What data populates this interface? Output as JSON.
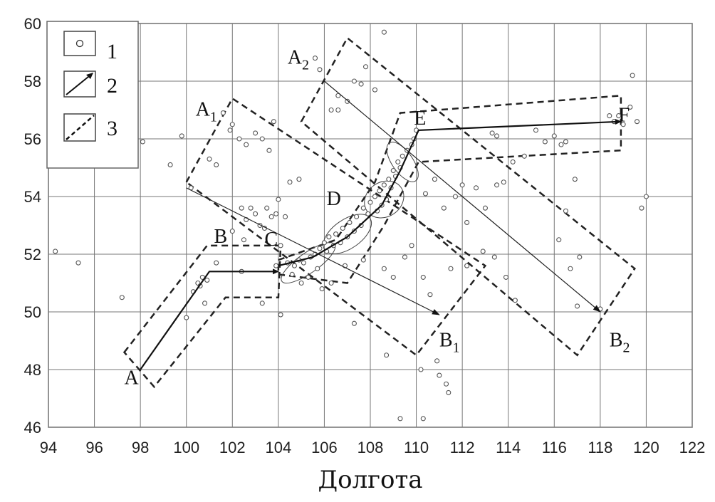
{
  "chart_data": {
    "type": "scatter",
    "xlabel": "Долгота",
    "xlim": [
      94,
      122
    ],
    "ylim": [
      46,
      60
    ],
    "x_ticks": [
      "94",
      "96",
      "98",
      "100",
      "102",
      "104",
      "106",
      "108",
      "110",
      "112",
      "114",
      "116",
      "118",
      "120",
      "122"
    ],
    "y_ticks": [
      "46",
      "48",
      "50",
      "52",
      "54",
      "56",
      "58",
      "60"
    ],
    "legend": [
      "1",
      "2",
      "3"
    ],
    "point_labels": {
      "A": "A",
      "B": "B",
      "C": "C",
      "D": "D",
      "E": "E",
      "F": "F",
      "A1": "A",
      "A1_sub": "1",
      "A2": "A",
      "A2_sub": "2",
      "B1": "B",
      "B1_sub": "1",
      "B2": "B",
      "B2_sub": "2"
    },
    "grid": true,
    "legend_position": "top-left",
    "points": [
      [
        94.3,
        52.1
      ],
      [
        95.3,
        51.7
      ],
      [
        98.1,
        55.9
      ],
      [
        99.3,
        55.1
      ],
      [
        99.8,
        56.1
      ],
      [
        100.2,
        54.3
      ],
      [
        100.5,
        51.0
      ],
      [
        100.7,
        51.2
      ],
      [
        100.6,
        50.9
      ],
      [
        100.9,
        51.1
      ],
      [
        100.3,
        50.7
      ],
      [
        100.0,
        49.8
      ],
      [
        101.0,
        55.3
      ],
      [
        101.3,
        55.1
      ],
      [
        101.6,
        56.9
      ],
      [
        101.9,
        56.3
      ],
      [
        102.0,
        56.5
      ],
      [
        102.3,
        56.0
      ],
      [
        102.6,
        55.8
      ],
      [
        103.0,
        56.2
      ],
      [
        103.3,
        56.0
      ],
      [
        103.6,
        55.6
      ],
      [
        103.8,
        56.6
      ],
      [
        102.4,
        53.6
      ],
      [
        102.6,
        53.2
      ],
      [
        102.8,
        53.6
      ],
      [
        103.0,
        53.4
      ],
      [
        103.2,
        53.0
      ],
      [
        103.5,
        53.6
      ],
      [
        103.7,
        53.3
      ],
      [
        103.9,
        53.4
      ],
      [
        102.0,
        52.8
      ],
      [
        102.5,
        52.5
      ],
      [
        103.4,
        52.9
      ],
      [
        104.3,
        53.3
      ],
      [
        104.5,
        54.5
      ],
      [
        104.9,
        54.6
      ],
      [
        104.0,
        53.9
      ],
      [
        103.9,
        51.6
      ],
      [
        104.1,
        52.3
      ],
      [
        104.4,
        51.7
      ],
      [
        104.7,
        51.6
      ],
      [
        104.9,
        51.8
      ],
      [
        105.1,
        51.7
      ],
      [
        105.4,
        51.9
      ],
      [
        105.6,
        52.0
      ],
      [
        105.8,
        52.2
      ],
      [
        106.0,
        52.4
      ],
      [
        106.2,
        52.6
      ],
      [
        106.5,
        52.7
      ],
      [
        106.8,
        52.9
      ],
      [
        107.1,
        53.1
      ],
      [
        107.4,
        53.3
      ],
      [
        107.7,
        53.6
      ],
      [
        108.0,
        53.8
      ],
      [
        108.2,
        54.0
      ],
      [
        108.4,
        54.2
      ],
      [
        108.6,
        54.4
      ],
      [
        108.8,
        54.6
      ],
      [
        109.0,
        54.9
      ],
      [
        109.2,
        55.2
      ],
      [
        109.4,
        55.4
      ],
      [
        109.6,
        55.6
      ],
      [
        109.8,
        55.8
      ],
      [
        109.9,
        56.0
      ],
      [
        110.0,
        56.3
      ],
      [
        108.5,
        53.7
      ],
      [
        108.7,
        53.9
      ],
      [
        108.9,
        54.3
      ],
      [
        109.1,
        54.7
      ],
      [
        109.3,
        55.0
      ],
      [
        108.3,
        53.5
      ],
      [
        107.9,
        53.4
      ],
      [
        107.6,
        53.0
      ],
      [
        107.3,
        52.8
      ],
      [
        107.0,
        52.6
      ],
      [
        106.7,
        52.4
      ],
      [
        106.4,
        52.3
      ],
      [
        106.1,
        52.1
      ],
      [
        105.7,
        51.5
      ],
      [
        105.3,
        51.2
      ],
      [
        105.0,
        51.0
      ],
      [
        104.6,
        51.3
      ],
      [
        105.9,
        50.8
      ],
      [
        106.3,
        51.0
      ],
      [
        106.9,
        51.6
      ],
      [
        107.7,
        51.8
      ],
      [
        108.6,
        51.5
      ],
      [
        109.0,
        51.2
      ],
      [
        109.5,
        51.9
      ],
      [
        109.8,
        52.3
      ],
      [
        107.6,
        57.9
      ],
      [
        107.8,
        58.5
      ],
      [
        107.3,
        58.0
      ],
      [
        107.0,
        57.3
      ],
      [
        106.6,
        57.5
      ],
      [
        105.6,
        58.8
      ],
      [
        105.8,
        58.4
      ],
      [
        106.3,
        57.0
      ],
      [
        106.6,
        57.0
      ],
      [
        108.2,
        57.7
      ],
      [
        108.6,
        59.7
      ],
      [
        110.4,
        54.1
      ],
      [
        110.8,
        54.6
      ],
      [
        111.2,
        53.6
      ],
      [
        111.7,
        54.0
      ],
      [
        112.2,
        53.1
      ],
      [
        112.0,
        54.4
      ],
      [
        112.6,
        54.3
      ],
      [
        113.0,
        53.6
      ],
      [
        113.5,
        54.4
      ],
      [
        113.8,
        54.5
      ],
      [
        114.2,
        55.2
      ],
      [
        114.7,
        55.4
      ],
      [
        115.2,
        56.3
      ],
      [
        115.6,
        55.9
      ],
      [
        116.0,
        56.1
      ],
      [
        116.3,
        55.8
      ],
      [
        116.5,
        55.9
      ],
      [
        113.3,
        56.2
      ],
      [
        113.5,
        56.1
      ],
      [
        112.9,
        52.1
      ],
      [
        113.4,
        51.9
      ],
      [
        113.9,
        51.2
      ],
      [
        114.3,
        50.4
      ],
      [
        116.2,
        52.5
      ],
      [
        116.7,
        51.5
      ],
      [
        117.1,
        51.9
      ],
      [
        116.9,
        54.6
      ],
      [
        116.5,
        53.5
      ],
      [
        118.4,
        56.8
      ],
      [
        118.6,
        56.6
      ],
      [
        118.8,
        56.8
      ],
      [
        119.0,
        56.5
      ],
      [
        119.3,
        57.1
      ],
      [
        119.4,
        58.2
      ],
      [
        119.6,
        56.6
      ],
      [
        119.8,
        53.6
      ],
      [
        120.0,
        54.0
      ],
      [
        117.0,
        50.2
      ],
      [
        118.0,
        50.1
      ],
      [
        110.2,
        48.0
      ],
      [
        110.6,
        50.6
      ],
      [
        110.9,
        48.3
      ],
      [
        111.3,
        47.5
      ],
      [
        111.0,
        47.8
      ],
      [
        110.3,
        46.3
      ],
      [
        109.3,
        46.3
      ],
      [
        111.4,
        47.2
      ],
      [
        112.2,
        51.6
      ],
      [
        110.3,
        51.2
      ],
      [
        111.5,
        51.5
      ],
      [
        100.8,
        50.3
      ],
      [
        103.3,
        50.3
      ],
      [
        104.1,
        49.9
      ],
      [
        108.7,
        48.5
      ],
      [
        107.3,
        49.6
      ],
      [
        101.3,
        51.7
      ],
      [
        102.4,
        51.4
      ],
      [
        97.2,
        50.5
      ]
    ],
    "arrows": [
      [
        [
          98.0,
          48.0
        ],
        [
          101.0,
          51.4
        ],
        [
          104.0,
          51.4
        ]
      ],
      [
        [
          104.0,
          51.6
        ],
        [
          105.5,
          51.9
        ],
        [
          107.0,
          52.6
        ],
        [
          108.5,
          53.7
        ],
        [
          109.3,
          54.9
        ],
        [
          110.1,
          56.3
        ],
        [
          118.9,
          56.6
        ]
      ]
    ],
    "thin_arrows": [
      [
        [
          100.0,
          54.3
        ],
        [
          111.0,
          49.9
        ]
      ],
      [
        [
          106.0,
          58.0
        ],
        [
          118.0,
          50.0
        ]
      ]
    ],
    "dashed_regions": [
      [
        [
          97.3,
          48.6
        ],
        [
          100.9,
          52.3
        ],
        [
          104.1,
          52.3
        ],
        [
          104.0,
          50.5
        ],
        [
          101.7,
          50.5
        ],
        [
          98.6,
          47.4
        ]
      ],
      [
        [
          100.0,
          54.5
        ],
        [
          102.0,
          57.4
        ],
        [
          113.0,
          51.6
        ],
        [
          110.0,
          48.5
        ]
      ],
      [
        [
          105.0,
          56.6
        ],
        [
          107.0,
          59.5
        ],
        [
          119.5,
          51.5
        ],
        [
          117.0,
          48.5
        ]
      ],
      [
        [
          104.0,
          51.8
        ],
        [
          106.5,
          52.5
        ],
        [
          108.2,
          54.5
        ],
        [
          109.3,
          56.9
        ],
        [
          118.9,
          57.5
        ],
        [
          118.9,
          55.6
        ],
        [
          110.1,
          55.2
        ],
        [
          108.6,
          53.0
        ],
        [
          107.0,
          51.0
        ],
        [
          104.0,
          51.3
        ]
      ]
    ],
    "cluster_ellipses": [
      [
        105.3,
        51.7,
        1.4,
        0.35
      ],
      [
        107.0,
        52.7,
        1.2,
        0.5
      ],
      [
        108.6,
        53.9,
        0.9,
        0.6
      ],
      [
        109.4,
        55.2,
        0.45,
        0.8
      ]
    ],
    "label_positions": {
      "A": [
        97.3,
        47.5
      ],
      "B": [
        101.2,
        52.4
      ],
      "C": [
        103.4,
        52.3
      ],
      "D": [
        106.1,
        53.7
      ],
      "E": [
        109.9,
        56.5
      ],
      "F": [
        118.8,
        56.6
      ],
      "A1": [
        100.4,
        56.8
      ],
      "A2": [
        104.4,
        58.6
      ],
      "B1": [
        111.0,
        48.8
      ],
      "B2": [
        118.4,
        48.8
      ]
    }
  }
}
